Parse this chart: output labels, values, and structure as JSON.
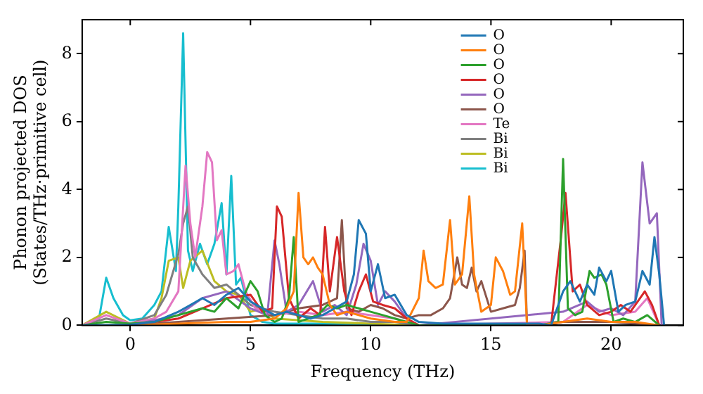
{
  "chart_data": {
    "type": "line",
    "xlabel": "Frequency (THz)",
    "ylabel": "Phonon projected DOS\n(States/THz·primitive cell)",
    "xlim": [
      -2,
      23
    ],
    "ylim": [
      0,
      9
    ],
    "xticks": [
      0,
      5,
      10,
      15,
      20
    ],
    "yticks": [
      0,
      2,
      4,
      6,
      8
    ],
    "grid": false,
    "legend": "top right",
    "marker": "none",
    "line_style": "solid",
    "series": [
      {
        "name": "O",
        "color": "#1f77b4",
        "x": [
          -2,
          0,
          1,
          2,
          2.5,
          3,
          3.5,
          4,
          4.5,
          5,
          5.5,
          6,
          6.5,
          7,
          7.5,
          8,
          8.5,
          9,
          9.3,
          9.5,
          9.8,
          10,
          10.3,
          10.6,
          11,
          11.5,
          12,
          13,
          14,
          15,
          16,
          17,
          17.5,
          18,
          18.3,
          18.7,
          19,
          19.3,
          19.5,
          19.8,
          20,
          20.3,
          20.6,
          21,
          21.3,
          21.6,
          21.8,
          22,
          22.2
        ],
        "values": [
          0,
          0.02,
          0.1,
          0.4,
          0.6,
          0.8,
          0.6,
          0.9,
          1.1,
          0.7,
          0.5,
          0.3,
          0.4,
          0.3,
          0.2,
          0.3,
          0.5,
          0.7,
          1.5,
          3.1,
          2.7,
          1.0,
          1.8,
          0.8,
          0.9,
          0.3,
          0.1,
          0.05,
          0.05,
          0.05,
          0.05,
          0.05,
          0,
          1.0,
          1.3,
          0.7,
          1.2,
          0.9,
          1.7,
          1.3,
          1.6,
          0.4,
          0.6,
          0.7,
          1.6,
          1.2,
          2.6,
          1.5,
          0
        ]
      },
      {
        "name": "O",
        "color": "#ff7f0e",
        "x": [
          -2,
          0,
          2,
          4,
          5,
          6,
          6.5,
          6.8,
          7.0,
          7.2,
          7.4,
          7.6,
          7.8,
          8.0,
          8.3,
          8.6,
          9,
          9.5,
          10,
          11,
          11.5,
          12,
          12.2,
          12.4,
          12.7,
          13,
          13.3,
          13.5,
          13.8,
          14.1,
          14.3,
          14.6,
          15,
          15.2,
          15.5,
          15.8,
          16.0,
          16.3,
          16.5,
          17,
          18,
          19,
          20,
          21,
          22
        ],
        "values": [
          0,
          0,
          0.05,
          0.1,
          0.1,
          0.2,
          0.5,
          1.0,
          3.9,
          2.0,
          1.8,
          2.0,
          1.7,
          1.5,
          0.6,
          0.3,
          0.4,
          0.3,
          0.2,
          0.1,
          0.1,
          0.8,
          2.2,
          1.3,
          1.1,
          1.2,
          3.1,
          1.2,
          1.5,
          3.8,
          1.5,
          0.4,
          0.6,
          2.0,
          1.6,
          0.9,
          1.0,
          3.0,
          0,
          0,
          0.1,
          0.2,
          0.1,
          0.1,
          0
        ]
      },
      {
        "name": "O",
        "color": "#2ca02c",
        "x": [
          -2,
          -1,
          0,
          1,
          2,
          3,
          3.5,
          4,
          4.5,
          5.0,
          5.3,
          5.6,
          6,
          6.3,
          6.6,
          6.8,
          7.0,
          7.4,
          7.8,
          8.2,
          8.6,
          9,
          9.5,
          10,
          10.5,
          11,
          12,
          17,
          17.8,
          18.0,
          18.2,
          18.5,
          18.8,
          19.1,
          19.3,
          19.6,
          19.8,
          20.1,
          20.5,
          21,
          21.5,
          22
        ],
        "values": [
          0,
          0.1,
          0.05,
          0.1,
          0.3,
          0.5,
          0.4,
          0.8,
          0.5,
          1.3,
          1.0,
          0.3,
          0.1,
          0.2,
          0.8,
          2.6,
          0.1,
          0.2,
          0.3,
          0.6,
          0.5,
          0.6,
          0.5,
          0.4,
          0.3,
          0.2,
          0,
          0,
          0.1,
          4.9,
          0.5,
          0.3,
          0.4,
          1.6,
          1.4,
          1.5,
          1.2,
          0.1,
          0.2,
          0.1,
          0.3,
          0
        ]
      },
      {
        "name": "O",
        "color": "#d62728",
        "x": [
          -2,
          0,
          2,
          3,
          4,
          5,
          5.5,
          5.9,
          6.1,
          6.3,
          6.6,
          7,
          7.5,
          7.9,
          8.1,
          8.3,
          8.6,
          8.9,
          9.2,
          9.5,
          9.8,
          10.1,
          10.5,
          11,
          11.5,
          12,
          17.5,
          17.9,
          18.1,
          18.4,
          18.7,
          19,
          19.5,
          20,
          20.4,
          20.8,
          21.2,
          21.4,
          21.7,
          22
        ],
        "values": [
          0,
          0,
          0.2,
          0.5,
          0.8,
          0.9,
          0.4,
          0.5,
          3.5,
          3.2,
          0.8,
          0.2,
          0.5,
          0.3,
          2.9,
          1.0,
          2.6,
          1.0,
          0.3,
          1.0,
          1.5,
          0.7,
          0.6,
          0.5,
          0.2,
          0,
          0,
          2.5,
          3.9,
          1.0,
          1.2,
          0.6,
          0.3,
          0.4,
          0.6,
          0.4,
          0.8,
          1.0,
          0.6,
          0
        ]
      },
      {
        "name": "O",
        "color": "#9467bd",
        "x": [
          -2,
          0,
          2,
          3,
          4,
          5,
          5.7,
          6.0,
          6.2,
          6.5,
          7,
          7.6,
          8,
          8.5,
          9,
          9.4,
          9.7,
          10,
          10.3,
          10.6,
          11,
          11.5,
          12,
          18,
          19,
          19.5,
          20,
          20.5,
          21,
          21.3,
          21.6,
          21.9,
          22.1
        ],
        "values": [
          0,
          0,
          0.3,
          0.8,
          1.0,
          0.5,
          0.3,
          2.5,
          1.8,
          0.4,
          0.6,
          1.3,
          0.4,
          0.6,
          0.3,
          1.2,
          2.4,
          1.9,
          0.6,
          1.0,
          0.7,
          0.2,
          0,
          0.4,
          0.7,
          0.4,
          0.5,
          0.3,
          0.7,
          4.8,
          3.0,
          3.3,
          0
        ]
      },
      {
        "name": "O",
        "color": "#8c564b",
        "x": [
          -2,
          0,
          2,
          4,
          6,
          7,
          8,
          8.6,
          8.8,
          9,
          9.5,
          10,
          10.5,
          11,
          11.5,
          12,
          12.5,
          13,
          13.3,
          13.6,
          13.8,
          14.0,
          14.2,
          14.4,
          14.6,
          15,
          15.5,
          16,
          16.2,
          16.4,
          16.5,
          17,
          18,
          20,
          22
        ],
        "values": [
          0,
          0,
          0.1,
          0.2,
          0.3,
          0.5,
          0.6,
          0.8,
          3.1,
          0.5,
          0.4,
          0.6,
          0.5,
          0.3,
          0.2,
          0.3,
          0.3,
          0.5,
          0.8,
          2.0,
          1.2,
          1.1,
          1.7,
          1.0,
          1.3,
          0.4,
          0.5,
          0.6,
          1.1,
          2.2,
          0,
          0,
          0.1,
          0.1,
          0
        ]
      },
      {
        "name": "Te",
        "color": "#e377c2",
        "x": [
          -2,
          -1,
          0,
          1,
          1.5,
          2.0,
          2.3,
          2.5,
          2.7,
          3.0,
          3.2,
          3.4,
          3.6,
          3.8,
          4.0,
          4.3,
          4.5,
          4.8,
          5.2,
          6,
          7,
          8,
          9,
          10,
          11,
          12,
          18,
          19,
          20,
          21,
          21.5,
          22
        ],
        "values": [
          0,
          0.3,
          0.05,
          0.2,
          0.4,
          1.0,
          4.7,
          3.0,
          2.0,
          3.5,
          5.1,
          4.8,
          2.5,
          2.8,
          1.5,
          1.6,
          1.8,
          1.0,
          0.5,
          0.3,
          0.4,
          0.3,
          0.4,
          0.3,
          0.2,
          0,
          0.1,
          0.6,
          0.3,
          0.4,
          0.8,
          0
        ]
      },
      {
        "name": "Bi",
        "color": "#7f7f7f",
        "x": [
          -2,
          -1,
          0,
          1,
          1.5,
          2.0,
          2.2,
          2.4,
          2.6,
          3.0,
          3.5,
          4.0,
          4.5,
          5,
          6,
          7,
          8,
          9,
          10,
          11,
          12
        ],
        "values": [
          0,
          0.2,
          0.05,
          0.3,
          0.9,
          2.1,
          3.0,
          3.5,
          2.0,
          1.5,
          1.1,
          1.2,
          0.9,
          0.6,
          0.4,
          0.3,
          0.2,
          0.2,
          0.1,
          0.1,
          0
        ]
      },
      {
        "name": "Bi",
        "color": "#bcbd22",
        "x": [
          -2,
          -1,
          0,
          1,
          1.3,
          1.6,
          2.0,
          2.2,
          2.5,
          3.0,
          3.5,
          4.0,
          4.5,
          5,
          5.5,
          6,
          8,
          10,
          12
        ],
        "values": [
          0,
          0.4,
          0.05,
          0.2,
          0.8,
          1.9,
          2.0,
          1.1,
          1.9,
          2.2,
          1.3,
          1.0,
          0.9,
          0.4,
          0.5,
          0.2,
          0.1,
          0.05,
          0
        ]
      },
      {
        "name": "Bi",
        "color": "#17becf",
        "x": [
          -2,
          -1.3,
          -1.0,
          -0.7,
          -0.3,
          0,
          0.5,
          1.0,
          1.3,
          1.6,
          1.9,
          2.0,
          2.2,
          2.4,
          2.6,
          2.9,
          3.2,
          3.5,
          3.8,
          4.0,
          4.2,
          4.4,
          4.6,
          5,
          5.5,
          6,
          7,
          8,
          10,
          12
        ],
        "values": [
          0,
          0.2,
          1.4,
          0.8,
          0.3,
          0.15,
          0.2,
          0.6,
          1.0,
          2.9,
          1.6,
          3.5,
          8.6,
          2.2,
          1.6,
          2.4,
          1.8,
          2.4,
          3.6,
          1.5,
          4.4,
          1.2,
          1.4,
          0.3,
          0.1,
          0.05,
          0.05,
          0.05,
          0.03,
          0
        ]
      }
    ]
  }
}
